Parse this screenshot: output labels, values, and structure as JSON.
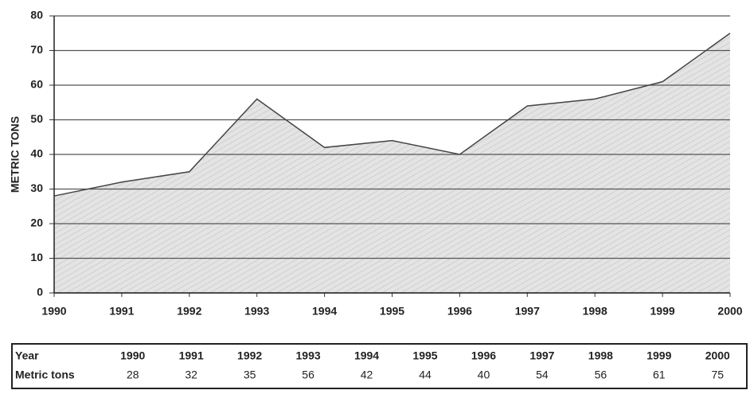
{
  "chart_data": {
    "type": "area",
    "ylabel": "METRIC TONS",
    "x": [
      1990,
      1991,
      1992,
      1993,
      1994,
      1995,
      1996,
      1997,
      1998,
      1999,
      2000
    ],
    "values": [
      28,
      32,
      35,
      56,
      42,
      44,
      40,
      54,
      56,
      61,
      75
    ],
    "xlim": [
      1990,
      2000
    ],
    "xticks": [
      1990,
      1991,
      1992,
      1993,
      1994,
      1995,
      1996,
      1997,
      1998,
      1999,
      2000
    ],
    "ylim": [
      0,
      80
    ],
    "yticks": [
      0,
      10,
      20,
      30,
      40,
      50,
      60,
      70,
      80
    ],
    "grid": true,
    "color": "#d9d9d9",
    "table_headers": [
      "Year",
      "Metric tons"
    ]
  }
}
